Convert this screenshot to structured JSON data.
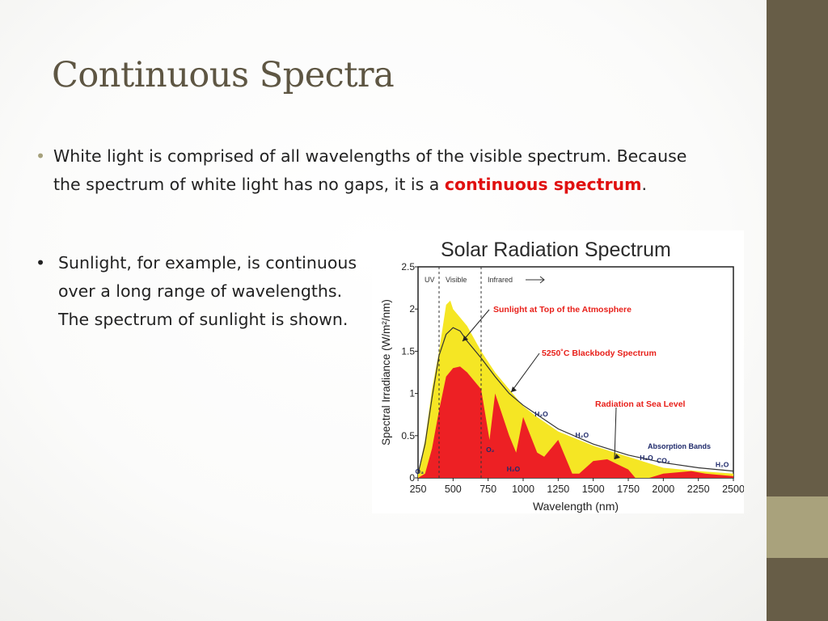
{
  "slide": {
    "title": "Continuous Spectra",
    "bullets": [
      {
        "text_before": "White light is comprised of all wavelengths of the visible spectrum.  Because the spectrum of white light has no gaps, it is a ",
        "highlight": "continuous spectrum",
        "text_after": "."
      },
      {
        "text": "Sunlight, for example, is continuous over a long range of wavelengths.  The spectrum of sunlight is shown."
      }
    ]
  },
  "colors": {
    "side_bar": "#675d47",
    "side_accent": "#a9a27c",
    "title": "#5e5643",
    "highlight": "#e01010",
    "top_of_atmosphere_fill": "#f5e624",
    "sea_level_fill": "#ed2024",
    "annotation_text": "#e8201a",
    "absorption_text": "#1f2a6b"
  },
  "chart_data": {
    "type": "area",
    "title": "Solar Radiation Spectrum",
    "xlabel": "Wavelength (nm)",
    "ylabel": "Spectral Irradiance (W/m²/nm)",
    "xlim": [
      250,
      2500
    ],
    "ylim": [
      0,
      2.5
    ],
    "x_ticks": [
      "250",
      "500",
      "750",
      "1000",
      "1250",
      "1500",
      "1750",
      "2000",
      "2250",
      "2500"
    ],
    "y_ticks": [
      "0",
      "0.5",
      "1",
      "1.5",
      "2",
      "2.5"
    ],
    "regions": [
      {
        "label": "UV",
        "from": 250,
        "to": 400
      },
      {
        "label": "Visible",
        "from": 400,
        "to": 700
      },
      {
        "label": "Infrared",
        "from": 700,
        "to": 2500
      }
    ],
    "series": [
      {
        "name": "Sunlight at Top of the Atmosphere",
        "points": [
          [
            250,
            0.05
          ],
          [
            300,
            0.45
          ],
          [
            350,
            1.05
          ],
          [
            400,
            1.5
          ],
          [
            450,
            2.05
          ],
          [
            480,
            2.1
          ],
          [
            500,
            2.0
          ],
          [
            550,
            1.9
          ],
          [
            600,
            1.8
          ],
          [
            700,
            1.5
          ],
          [
            800,
            1.25
          ],
          [
            900,
            1.05
          ],
          [
            1000,
            0.85
          ],
          [
            1100,
            0.72
          ],
          [
            1250,
            0.55
          ],
          [
            1500,
            0.38
          ],
          [
            1750,
            0.25
          ],
          [
            2000,
            0.12
          ],
          [
            2250,
            0.08
          ],
          [
            2500,
            0.05
          ]
        ]
      },
      {
        "name": "5250°C Blackbody Spectrum",
        "points": [
          [
            250,
            0.05
          ],
          [
            300,
            0.4
          ],
          [
            350,
            0.95
          ],
          [
            400,
            1.45
          ],
          [
            450,
            1.7
          ],
          [
            500,
            1.78
          ],
          [
            550,
            1.74
          ],
          [
            600,
            1.62
          ],
          [
            700,
            1.42
          ],
          [
            800,
            1.2
          ],
          [
            900,
            1.0
          ],
          [
            1000,
            0.86
          ],
          [
            1250,
            0.58
          ],
          [
            1500,
            0.4
          ],
          [
            1750,
            0.27
          ],
          [
            2000,
            0.18
          ],
          [
            2250,
            0.12
          ],
          [
            2500,
            0.08
          ]
        ]
      },
      {
        "name": "Radiation at Sea Level",
        "points": [
          [
            250,
            0
          ],
          [
            300,
            0.05
          ],
          [
            350,
            0.35
          ],
          [
            400,
            0.8
          ],
          [
            450,
            1.2
          ],
          [
            500,
            1.3
          ],
          [
            550,
            1.32
          ],
          [
            600,
            1.25
          ],
          [
            700,
            1.05
          ],
          [
            760,
            0.45
          ],
          [
            800,
            1.0
          ],
          [
            900,
            0.5
          ],
          [
            950,
            0.3
          ],
          [
            1000,
            0.72
          ],
          [
            1100,
            0.3
          ],
          [
            1150,
            0.25
          ],
          [
            1250,
            0.45
          ],
          [
            1350,
            0.05
          ],
          [
            1400,
            0.05
          ],
          [
            1500,
            0.2
          ],
          [
            1600,
            0.22
          ],
          [
            1750,
            0.1
          ],
          [
            1800,
            0.0
          ],
          [
            1900,
            0.0
          ],
          [
            2000,
            0.05
          ],
          [
            2200,
            0.08
          ],
          [
            2300,
            0.05
          ],
          [
            2500,
            0.02
          ]
        ]
      }
    ],
    "annotations": [
      "Sunlight at Top of the Atmosphere",
      "5250˚C Blackbody Spectrum",
      "Radiation at Sea Level",
      "Absorption Bands"
    ],
    "absorption_labels": [
      {
        "text": "O₃",
        "x": 260,
        "y": 0.02
      },
      {
        "text": "O₂",
        "x": 765,
        "y": 0.28
      },
      {
        "text": "H₂O",
        "x": 930,
        "y": 0.05
      },
      {
        "text": "H₂O",
        "x": 1130,
        "y": 0.7
      },
      {
        "text": "H₂O",
        "x": 1420,
        "y": 0.45
      },
      {
        "text": "H₂O",
        "x": 1880,
        "y": 0.18
      },
      {
        "text": "CO₂",
        "x": 2000,
        "y": 0.15
      },
      {
        "text": "H₂O",
        "x": 2420,
        "y": 0.1
      }
    ]
  }
}
